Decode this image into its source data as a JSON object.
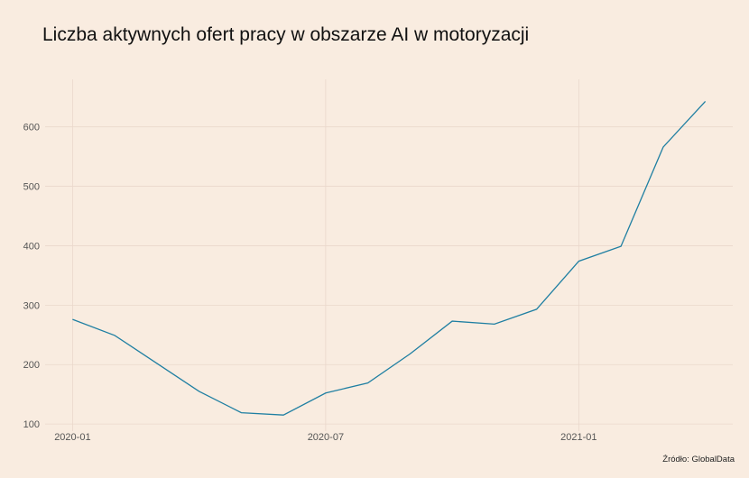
{
  "colors": {
    "background": "#f9ece0",
    "line": "#1f7fa2",
    "grid": "#ead8cb"
  },
  "chart_data": {
    "type": "line",
    "title": "Liczba aktywnych ofert pracy w obszarze AI w motoryzacji",
    "source": "Źródło: GlobalData",
    "xlabel": "",
    "ylabel": "",
    "x": [
      "2020-01",
      "2020-02",
      "2020-03",
      "2020-04",
      "2020-05",
      "2020-06",
      "2020-07",
      "2020-08",
      "2020-09",
      "2020-10",
      "2020-11",
      "2020-12",
      "2021-01",
      "2021-02",
      "2021-03",
      "2021-04"
    ],
    "series": [
      {
        "values": [
          276,
          249,
          202,
          155,
          119,
          115,
          152,
          169,
          218,
          273,
          268,
          293,
          374,
          399,
          566,
          643
        ]
      }
    ],
    "x_ticks": [
      "2020-01",
      "2020-07",
      "2021-01"
    ],
    "y_ticks": [
      100,
      200,
      300,
      400,
      500,
      600
    ],
    "ylim": [
      88,
      680
    ],
    "grid": true,
    "legend": "none"
  }
}
